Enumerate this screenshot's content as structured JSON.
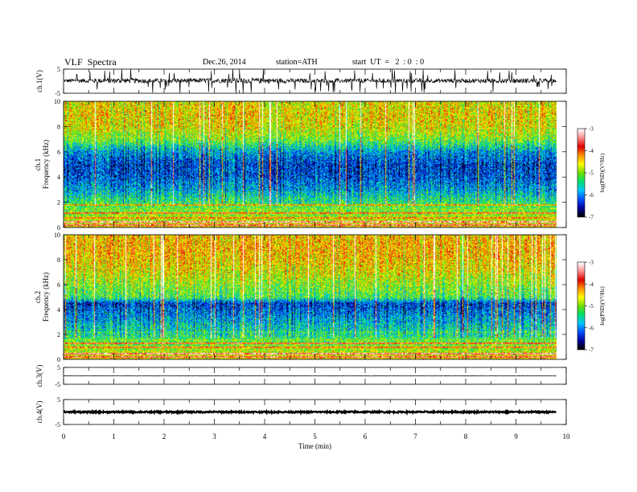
{
  "header": {
    "title": "VLF  Spectra",
    "date": "Dec.26, 2014",
    "station": "station=ATH",
    "start": "start  UT  =   2  : 0  : 0"
  },
  "colors": {
    "colorbar": [
      "#000000",
      "#0000a0",
      "#0050ff",
      "#00c8ff",
      "#00e070",
      "#70e000",
      "#ffff00",
      "#ff9000",
      "#e00000",
      "#ff9090",
      "#ffffff"
    ],
    "trace": "#000000"
  },
  "chart_data": [
    {
      "type": "line",
      "panel": "ch1-waveform",
      "ylabel": "ch.1(V)",
      "ylim": [
        -5,
        5
      ],
      "yticks": [
        "5",
        "-5"
      ],
      "x": [
        0,
        1,
        2,
        3,
        4,
        5,
        6,
        7,
        8,
        9,
        9.8
      ],
      "y_mean": [
        0.2,
        0.2,
        0.2,
        0.3,
        0.2,
        0.2,
        0.2,
        0.2,
        0.2,
        0.2,
        0.2
      ],
      "y_amp": [
        1.5,
        2.2,
        1.8,
        2.0,
        2.3,
        1.6,
        1.9,
        1.8,
        1.7,
        2.1,
        1.5
      ]
    },
    {
      "type": "heatmap",
      "panel": "ch1-spectrogram",
      "ylabel": "ch.1",
      "ylabel2": "Frequency  (kHz)",
      "ylim": [
        0,
        10
      ],
      "yticks": [
        "0",
        "2",
        "4",
        "6",
        "8",
        "10"
      ],
      "colorbar_label": "log(PSD)(V²/Hz)",
      "colorbar_ticks": [
        "-3",
        "-4",
        "-5",
        "-6",
        "-7"
      ],
      "clim": [
        -7,
        -3
      ],
      "duration_min": 9.8,
      "bands_khz": [
        0.2,
        0.5,
        0.8,
        1.2,
        1.5,
        1.8,
        2.3,
        2.6,
        3.0
      ],
      "band_logpsd": [
        -3.6,
        -3.3,
        -4.2,
        -4.0,
        -5.0,
        -4.4,
        -5.4,
        -5.6,
        -5.9
      ],
      "spectrum_profile": {
        "f_khz": [
          0,
          2,
          3,
          4,
          5,
          6,
          7,
          8,
          9,
          10
        ],
        "logpsd": [
          -4.5,
          -5.3,
          -5.8,
          -6.2,
          -6.3,
          -5.9,
          -5.0,
          -4.6,
          -4.5,
          -4.6
        ]
      }
    },
    {
      "type": "heatmap",
      "panel": "ch2-spectrogram",
      "ylabel": "ch.2",
      "ylabel2": "Frequency  (kHz)",
      "ylim": [
        0,
        10
      ],
      "yticks": [
        "0",
        "2",
        "4",
        "6",
        "8",
        "10"
      ],
      "colorbar_label": "log(PSD)(V²/Hz)",
      "colorbar_ticks": [
        "-3",
        "-4",
        "-5",
        "-6",
        "-7"
      ],
      "clim": [
        -7,
        -3
      ],
      "duration_min": 9.8,
      "bands_khz": [
        0.2,
        0.5,
        1.0,
        1.3,
        1.6,
        2.2,
        2.6,
        3.1
      ],
      "band_logpsd": [
        -3.7,
        -3.4,
        -4.1,
        -3.9,
        -5.0,
        -5.3,
        -5.6,
        -5.8
      ],
      "spectrum_profile": {
        "f_khz": [
          0,
          2,
          3,
          3.5,
          4.5,
          5,
          6,
          7,
          8,
          9,
          10
        ],
        "logpsd": [
          -4.5,
          -5.4,
          -5.7,
          -5.9,
          -6.3,
          -5.2,
          -4.9,
          -4.6,
          -4.4,
          -4.3,
          -4.4
        ]
      }
    },
    {
      "type": "line",
      "panel": "ch3-waveform",
      "ylabel": "ch.3(V)",
      "ylim": [
        -5,
        5
      ],
      "yticks": [
        "5",
        "-5"
      ],
      "x": [
        0,
        9.8
      ],
      "y_mean": [
        0,
        0
      ],
      "y_amp": [
        0.3,
        0.3
      ]
    },
    {
      "type": "line",
      "panel": "ch4-waveform",
      "ylabel": "ch.4(V)",
      "ylim": [
        -5,
        5
      ],
      "yticks": [
        "5",
        "-5"
      ],
      "x": [
        0,
        9.8
      ],
      "y_mean": [
        0,
        0
      ],
      "y_amp": [
        0.6,
        0.6
      ]
    }
  ],
  "x_axis": {
    "label": "Time  (min)",
    "xlim": [
      0,
      10
    ],
    "ticks": [
      "0",
      "1",
      "2",
      "3",
      "4",
      "5",
      "6",
      "7",
      "8",
      "9",
      "10"
    ]
  }
}
